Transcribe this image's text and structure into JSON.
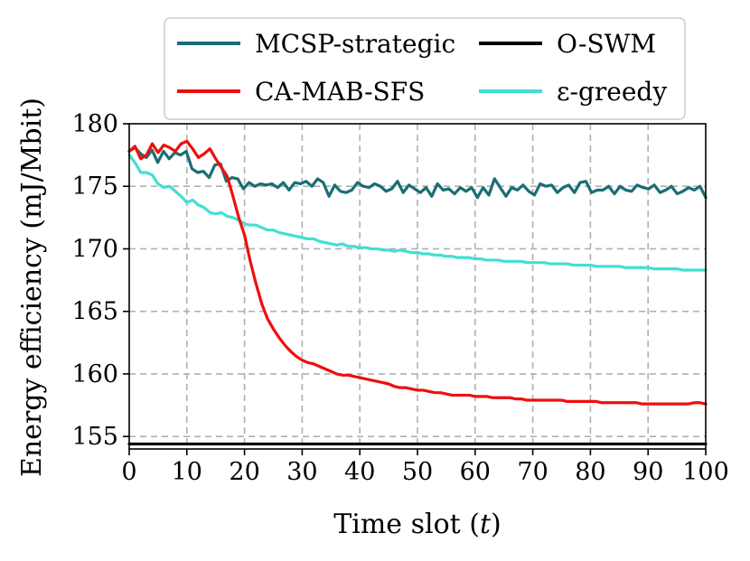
{
  "chart_data": {
    "type": "line",
    "xlabel": "Time slot (t)",
    "xlabel_main": "Time slot (",
    "xlabel_var": "t",
    "xlabel_close": ")",
    "ylabel": "Energy efficiency (mJ/Mbit)",
    "xlim": [
      0,
      100
    ],
    "ylim": [
      154,
      180
    ],
    "xticks": [
      0,
      10,
      20,
      30,
      40,
      50,
      60,
      70,
      80,
      90,
      100
    ],
    "yticks": [
      155,
      160,
      165,
      170,
      175,
      180
    ],
    "grid": true,
    "legend_position": "top, above plot, two columns",
    "series": [
      {
        "name": "MCSP-strategic",
        "color": "#1a6e73",
        "values": [
          177.8,
          178.1,
          177.6,
          177.3,
          177.9,
          176.9,
          177.8,
          177.2,
          177.7,
          177.5,
          177.8,
          176.4,
          176.1,
          176.2,
          175.7,
          176.7,
          176.8,
          175.4,
          175.7,
          175.6,
          174.8,
          175.3,
          175.0,
          175.2,
          175.1,
          175.2,
          174.9,
          175.3,
          174.7,
          175.3,
          175.2,
          175.4,
          175.0,
          175.6,
          175.3,
          174.2,
          175.1,
          174.6,
          174.5,
          174.7,
          175.3,
          175.0,
          174.9,
          175.2,
          175.0,
          174.6,
          174.8,
          175.4,
          174.5,
          175.1,
          174.8,
          174.5,
          174.9,
          174.2,
          175.2,
          174.7,
          174.8,
          174.4,
          174.9,
          174.6,
          174.9,
          174.1,
          174.9,
          174.3,
          175.6,
          174.9,
          174.2,
          174.9,
          174.7,
          175.1,
          174.6,
          174.3,
          175.2,
          175.0,
          175.1,
          174.5,
          174.9,
          175.1,
          174.5,
          175.3,
          175.4,
          174.5,
          174.7,
          174.7,
          175.0,
          174.4,
          175.0,
          174.7,
          174.6,
          175.1,
          174.9,
          174.8,
          175.1,
          174.5,
          174.7,
          175.0,
          174.4,
          174.6,
          174.9,
          174.7,
          175.0,
          174.1
        ]
      },
      {
        "name": "CA-MAB-SFS",
        "color": "#ef0e0e",
        "values": [
          177.8,
          178.2,
          177.2,
          177.5,
          178.4,
          177.7,
          178.3,
          178.1,
          177.8,
          178.4,
          178.6,
          178.0,
          177.3,
          177.6,
          178.0,
          177.2,
          176.5,
          175.8,
          174.2,
          172.5,
          171.1,
          169.0,
          167.2,
          165.6,
          164.4,
          163.6,
          162.9,
          162.3,
          161.8,
          161.4,
          161.1,
          160.9,
          160.8,
          160.6,
          160.4,
          160.2,
          160.0,
          159.9,
          159.9,
          159.8,
          159.7,
          159.6,
          159.5,
          159.4,
          159.3,
          159.2,
          159.0,
          158.9,
          158.9,
          158.8,
          158.7,
          158.7,
          158.6,
          158.5,
          158.5,
          158.4,
          158.3,
          158.3,
          158.3,
          158.3,
          158.2,
          158.2,
          158.2,
          158.1,
          158.1,
          158.1,
          158.1,
          158.0,
          158.0,
          157.9,
          157.9,
          157.9,
          157.9,
          157.9,
          157.9,
          157.9,
          157.8,
          157.8,
          157.8,
          157.8,
          157.8,
          157.8,
          157.7,
          157.7,
          157.7,
          157.7,
          157.7,
          157.7,
          157.7,
          157.6,
          157.6,
          157.6,
          157.6,
          157.6,
          157.6,
          157.6,
          157.6,
          157.6,
          157.7,
          157.7,
          157.6
        ]
      },
      {
        "name": "O-SWM",
        "color": "#000000",
        "values": [
          154.4,
          154.4
        ]
      },
      {
        "name": "ε-greedy",
        "color": "#40e0d0",
        "values": [
          177.5,
          176.9,
          176.1,
          176.1,
          175.9,
          175.2,
          174.9,
          175.0,
          174.6,
          174.2,
          173.7,
          173.9,
          173.5,
          173.3,
          172.9,
          172.8,
          172.9,
          172.6,
          172.5,
          172.3,
          172.0,
          171.9,
          171.9,
          171.7,
          171.5,
          171.5,
          171.3,
          171.2,
          171.1,
          171.0,
          170.9,
          170.8,
          170.8,
          170.6,
          170.5,
          170.4,
          170.3,
          170.4,
          170.2,
          170.2,
          170.1,
          170.1,
          170.0,
          170.0,
          169.9,
          169.9,
          169.8,
          169.9,
          169.8,
          169.7,
          169.7,
          169.6,
          169.6,
          169.5,
          169.5,
          169.4,
          169.4,
          169.3,
          169.3,
          169.3,
          169.2,
          169.2,
          169.1,
          169.1,
          169.1,
          169.0,
          169.0,
          169.0,
          169.0,
          168.9,
          168.9,
          168.9,
          168.9,
          168.8,
          168.8,
          168.8,
          168.8,
          168.7,
          168.7,
          168.7,
          168.7,
          168.6,
          168.6,
          168.6,
          168.6,
          168.6,
          168.5,
          168.5,
          168.5,
          168.5,
          168.5,
          168.4,
          168.4,
          168.4,
          168.4,
          168.4,
          168.3,
          168.3,
          168.3,
          168.3,
          168.3
        ]
      }
    ]
  }
}
